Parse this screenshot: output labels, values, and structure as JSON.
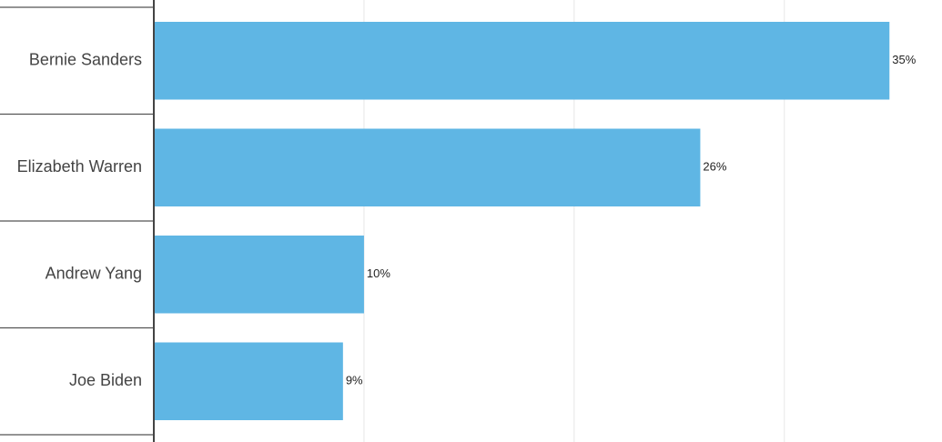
{
  "chart_data": {
    "type": "hbar",
    "categories": [
      "Bernie Sanders",
      "Elizabeth Warren",
      "Andrew Yang",
      "Joe Biden"
    ],
    "values": [
      35,
      26,
      10,
      9
    ],
    "value_labels": [
      "35%",
      "26%",
      "10%",
      "9%"
    ],
    "color": "#5fb6e4",
    "xlim": [
      0,
      37.5
    ],
    "xgrid": [
      10,
      20,
      30
    ]
  }
}
